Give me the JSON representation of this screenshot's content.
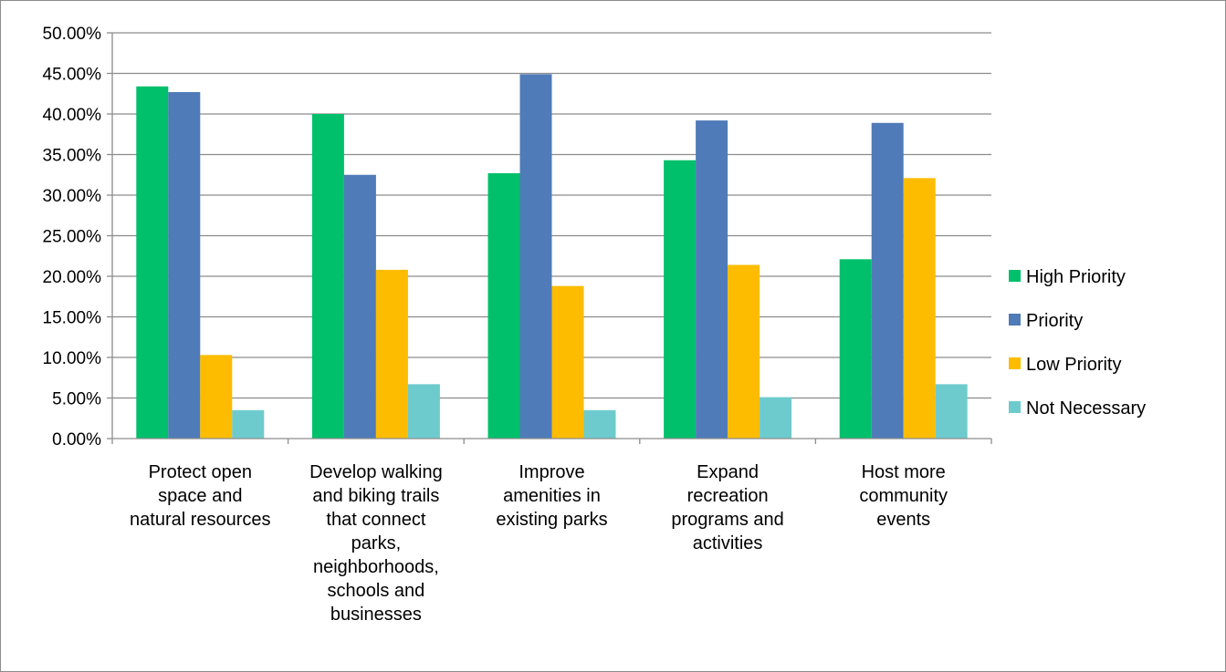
{
  "chart_data": {
    "type": "bar",
    "title": "",
    "xlabel": "",
    "ylabel": "",
    "ylim": [
      0,
      0.5
    ],
    "y_tick_values": [
      0,
      0.05,
      0.1,
      0.15,
      0.2,
      0.25,
      0.3,
      0.35,
      0.4,
      0.45,
      0.5
    ],
    "y_tick_labels": [
      "0.00%",
      "5.00%",
      "10.00%",
      "15.00%",
      "20.00%",
      "25.00%",
      "30.00%",
      "35.00%",
      "40.00%",
      "45.00%",
      "50.00%"
    ],
    "grid": true,
    "legend_position": "right",
    "categories": [
      [
        "Protect open",
        "space and",
        "natural resources"
      ],
      [
        "Develop walking",
        "and biking trails",
        "that connect",
        "parks,",
        "neighborhoods,",
        "schools and",
        "businesses"
      ],
      [
        "Improve",
        "amenities in",
        "existing parks"
      ],
      [
        "Expand",
        "recreation",
        "programs and",
        "activities"
      ],
      [
        "Host more",
        "community",
        "events"
      ]
    ],
    "series": [
      {
        "name": "High Priority",
        "color": "#00c06b",
        "values": [
          0.434,
          0.4,
          0.327,
          0.343,
          0.221
        ]
      },
      {
        "name": "Priority",
        "color": "#4f7bb8",
        "values": [
          0.427,
          0.325,
          0.449,
          0.392,
          0.389
        ]
      },
      {
        "name": "Low Priority",
        "color": "#fdbc00",
        "values": [
          0.103,
          0.208,
          0.188,
          0.214,
          0.321
        ]
      },
      {
        "name": "Not Necessary",
        "color": "#6ecbcd",
        "values": [
          0.035,
          0.067,
          0.035,
          0.051,
          0.067
        ]
      }
    ]
  }
}
